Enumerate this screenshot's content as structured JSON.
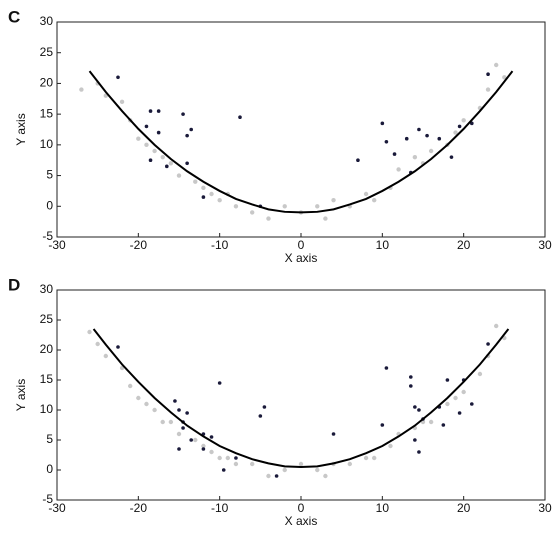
{
  "chart_data": [
    {
      "type": "scatter",
      "panel": "C",
      "xlabel": "X axis",
      "ylabel": "Y axis",
      "xlim": [
        -30,
        30
      ],
      "ylim": [
        -5,
        30
      ],
      "xticks": [
        -30,
        -20,
        -10,
        0,
        10,
        20,
        30
      ],
      "yticks": [
        -5,
        0,
        5,
        10,
        15,
        20,
        25,
        30
      ],
      "series": [
        {
          "type": "scatter",
          "color": "#c8c8c8",
          "x": [
            -27,
            -25,
            -24,
            -22,
            -21,
            -20,
            -19,
            -18,
            -17,
            -16,
            -15,
            -13,
            -12,
            -11,
            -10,
            -9,
            -8,
            -6,
            -4,
            -2,
            0,
            2,
            3,
            4,
            6,
            8,
            9,
            11,
            12,
            14,
            15,
            16,
            18,
            19,
            20,
            22,
            23,
            24,
            25
          ],
          "values": [
            19,
            20,
            18,
            17,
            14,
            11,
            10,
            9,
            8,
            7,
            5,
            4,
            3,
            2,
            1,
            2,
            0,
            -1,
            -2,
            0,
            -1,
            0,
            -2,
            1,
            0,
            2,
            1,
            3,
            6,
            8,
            7,
            9,
            10,
            12,
            14,
            16,
            19,
            23,
            21
          ]
        },
        {
          "type": "scatter",
          "color": "#1a1a3a",
          "x": [
            -22.5,
            -18.5,
            -17.5,
            -14.5,
            -13.5,
            -14,
            -17.5,
            -19,
            -16.5,
            -18.5,
            -14,
            -7.5,
            -12,
            -5,
            7,
            10,
            10.5,
            11.5,
            13,
            14.5,
            15.5,
            17,
            18.5,
            19.5,
            13.5,
            21,
            23
          ],
          "values": [
            21,
            15.5,
            15.5,
            15,
            12.5,
            11.5,
            12,
            13,
            6.5,
            7.5,
            7,
            14.5,
            1.5,
            0,
            7.5,
            13.5,
            10.5,
            8.5,
            11,
            12.5,
            11.5,
            11,
            8,
            13,
            5.5,
            13.5,
            21.5
          ]
        },
        {
          "type": "line",
          "color": "#000000",
          "x": [
            -26,
            -24,
            -22,
            -20,
            -18,
            -16,
            -14,
            -12,
            -10,
            -8,
            -6,
            -4,
            -2,
            0,
            2,
            4,
            6,
            8,
            10,
            12,
            14,
            16,
            18,
            20,
            22,
            24,
            26
          ],
          "values": [
            22.0,
            18.6,
            15.5,
            12.6,
            10.0,
            7.7,
            5.7,
            4.0,
            2.5,
            1.2,
            0.3,
            -0.5,
            -0.9,
            -1.0,
            -0.9,
            -0.5,
            0.3,
            1.2,
            2.5,
            4.0,
            5.7,
            7.7,
            10.0,
            12.6,
            15.5,
            18.6,
            22.0
          ]
        }
      ]
    },
    {
      "type": "scatter",
      "panel": "D",
      "xlabel": "X axis",
      "ylabel": "Y axis",
      "xlim": [
        -30,
        30
      ],
      "ylim": [
        -5,
        30
      ],
      "xticks": [
        -30,
        -20,
        -10,
        0,
        10,
        20,
        30
      ],
      "yticks": [
        -5,
        0,
        5,
        10,
        15,
        20,
        25,
        30
      ],
      "series": [
        {
          "type": "scatter",
          "color": "#c8c8c8",
          "x": [
            -26,
            -25,
            -24,
            -22,
            -21,
            -20,
            -19,
            -18,
            -17,
            -16,
            -15,
            -13,
            -12,
            -11,
            -10,
            -9,
            -8,
            -6,
            -4,
            -2,
            0,
            2,
            3,
            4,
            6,
            8,
            9,
            11,
            12,
            14,
            15,
            16,
            18,
            19,
            20,
            22,
            23,
            24,
            25
          ],
          "values": [
            23,
            21,
            19,
            17,
            14,
            12,
            11,
            10,
            8,
            8,
            6,
            5,
            4,
            3,
            2,
            2,
            1,
            1,
            -1,
            0,
            1,
            0,
            -1,
            1,
            1,
            2,
            2,
            4,
            6,
            7,
            8,
            8,
            11,
            12,
            13,
            16,
            19,
            24,
            22
          ]
        },
        {
          "type": "scatter",
          "color": "#1a1a3a",
          "x": [
            -22.5,
            -15.5,
            -15,
            -14,
            -14.5,
            -14.5,
            -13.5,
            -15,
            -12,
            -12,
            -11,
            -10,
            -9.5,
            -8,
            -5,
            -4.5,
            -3,
            4,
            10.5,
            10,
            13.5,
            13.5,
            14,
            14.5,
            15,
            14,
            14.5,
            17,
            17.5,
            18,
            19.5,
            20,
            21,
            23
          ],
          "values": [
            20.5,
            11.5,
            10,
            9.5,
            8,
            7,
            5,
            3.5,
            6,
            3.5,
            5.5,
            14.5,
            0,
            2,
            9,
            10.5,
            -1,
            6,
            17,
            7.5,
            15.5,
            14,
            10.5,
            10,
            8.5,
            5,
            3,
            10.5,
            7.5,
            15,
            9.5,
            15,
            11,
            21
          ]
        },
        {
          "type": "line",
          "color": "#000000",
          "x": [
            -25.5,
            -24,
            -22,
            -20,
            -18,
            -16,
            -14,
            -12,
            -10,
            -8,
            -6,
            -4,
            -2,
            0,
            2,
            4,
            6,
            8,
            10,
            12,
            14,
            16,
            18,
            20,
            22,
            24,
            25.5
          ],
          "values": [
            23.5,
            20.9,
            17.6,
            14.7,
            12.0,
            9.6,
            7.4,
            5.6,
            4.0,
            2.8,
            1.8,
            1.1,
            0.6,
            0.5,
            0.6,
            1.1,
            1.8,
            2.8,
            4.0,
            5.6,
            7.4,
            9.6,
            12.0,
            14.7,
            17.6,
            20.9,
            23.5
          ]
        }
      ]
    }
  ]
}
